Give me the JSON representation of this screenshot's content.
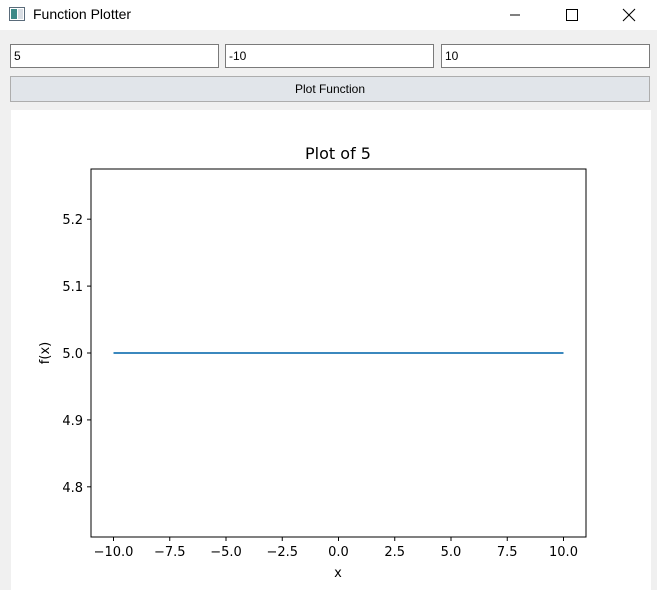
{
  "window": {
    "title": "Function Plotter",
    "icon": "app-window-icon"
  },
  "inputs": {
    "function": "5",
    "x_min": "-10",
    "x_max": "10"
  },
  "button": {
    "plot_label": "Plot Function"
  },
  "chart_data": {
    "type": "line",
    "title": "Plot of 5",
    "xlabel": "x",
    "ylabel": "f(x)",
    "xlim": [
      -11,
      11
    ],
    "ylim": [
      4.725,
      5.275
    ],
    "xticks": [
      -10,
      -7.5,
      -5,
      -2.5,
      0,
      2.5,
      5,
      7.5,
      10
    ],
    "xtick_labels": [
      "−10.0",
      "−7.5",
      "−5.0",
      "−2.5",
      "0.0",
      "2.5",
      "5.0",
      "7.5",
      "10.0"
    ],
    "yticks": [
      4.8,
      4.9,
      5.0,
      5.1,
      5.2
    ],
    "ytick_labels": [
      "4.8",
      "4.9",
      "5.0",
      "5.1",
      "5.2"
    ],
    "grid": false,
    "series": [
      {
        "x": [
          -10,
          10
        ],
        "y": [
          5,
          5
        ],
        "color": "#1f77b4"
      }
    ]
  }
}
